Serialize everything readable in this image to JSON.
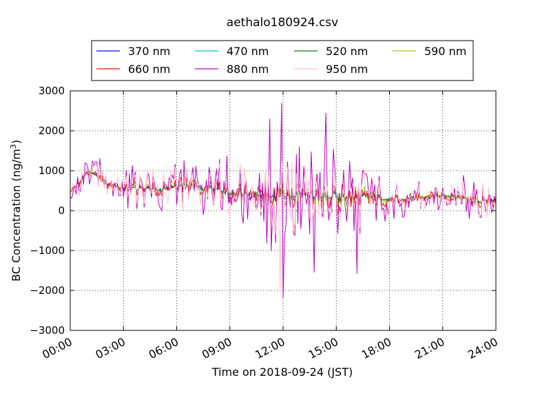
{
  "chart_data": {
    "type": "line",
    "title": "aethalo180924.csv",
    "xlabel": "Time on 2018-09-24 (JST)",
    "ylabel": "BC Concentration (ng/m",
    "ylabel_sup": "3",
    "ylabel_end": ")",
    "xlim": [
      "00:00",
      "24:00"
    ],
    "ylim": [
      -3000,
      3000
    ],
    "x_ticks": [
      "00:00",
      "03:00",
      "06:00",
      "09:00",
      "12:00",
      "15:00",
      "18:00",
      "21:00",
      "24:00"
    ],
    "y_ticks": [
      -3000,
      -2000,
      -1000,
      0,
      1000,
      2000,
      3000
    ],
    "y_tick_labels": [
      "−3000",
      "−2000",
      "−1000",
      "0",
      "1000",
      "2000",
      "3000"
    ],
    "grid": true,
    "legend_position": "top-center",
    "series": [
      {
        "name": "370 nm",
        "color": "#0000ff",
        "amp": 0.12,
        "seed": 3
      },
      {
        "name": "470 nm",
        "color": "#00bfbf",
        "amp": 0.15,
        "seed": 7
      },
      {
        "name": "520 nm",
        "color": "#008000",
        "amp": 0.2,
        "seed": 11
      },
      {
        "name": "590 nm",
        "color": "#bfbf00",
        "amp": 0.28,
        "seed": 17
      },
      {
        "name": "660 nm",
        "color": "#ff0000",
        "amp": 0.38,
        "seed": 23
      },
      {
        "name": "880 nm",
        "color": "#bf00bf",
        "amp": 1.15,
        "seed": 31
      },
      {
        "name": "950 nm",
        "color": "#ffc0cb",
        "amp": 0.85,
        "seed": 41
      }
    ],
    "baseline": {
      "x": [
        "00:00",
        "00:30",
        "01:00",
        "01:30",
        "02:00",
        "03:00",
        "04:00",
        "05:00",
        "06:00",
        "07:00",
        "08:00",
        "09:00",
        "10:00",
        "11:00",
        "12:00",
        "13:00",
        "14:00",
        "15:00",
        "16:00",
        "17:00",
        "18:00",
        "19:00",
        "20:00",
        "21:00",
        "22:00",
        "23:00",
        "24:00"
      ],
      "y": [
        500,
        700,
        1000,
        850,
        700,
        550,
        550,
        550,
        600,
        600,
        550,
        450,
        400,
        400,
        400,
        400,
        350,
        350,
        350,
        350,
        300,
        300,
        350,
        400,
        300,
        250,
        300
      ]
    },
    "noise_envelope": {
      "x": [
        "00:00",
        "01:00",
        "03:00",
        "06:00",
        "08:00",
        "10:00",
        "11:30",
        "12:00",
        "13:00",
        "14:00",
        "15:00",
        "16:00",
        "17:00",
        "18:00",
        "21:00",
        "24:00"
      ],
      "y": [
        300,
        500,
        500,
        700,
        800,
        1000,
        1400,
        1700,
        1200,
        1000,
        1400,
        1100,
        900,
        500,
        500,
        600
      ]
    },
    "extremes": [
      {
        "name": "880 nm",
        "x": "11:55",
        "y": 2700
      },
      {
        "name": "880 nm",
        "x": "12:00",
        "y": -2200
      },
      {
        "name": "880 nm",
        "x": "14:25",
        "y": 2450
      },
      {
        "name": "880 nm",
        "x": "13:45",
        "y": -1550
      },
      {
        "name": "880 nm",
        "x": "16:10",
        "y": -1580
      },
      {
        "name": "880 nm",
        "x": "11:15",
        "y": 2300
      },
      {
        "name": "950 nm",
        "x": "11:50",
        "y": -2050
      }
    ]
  }
}
